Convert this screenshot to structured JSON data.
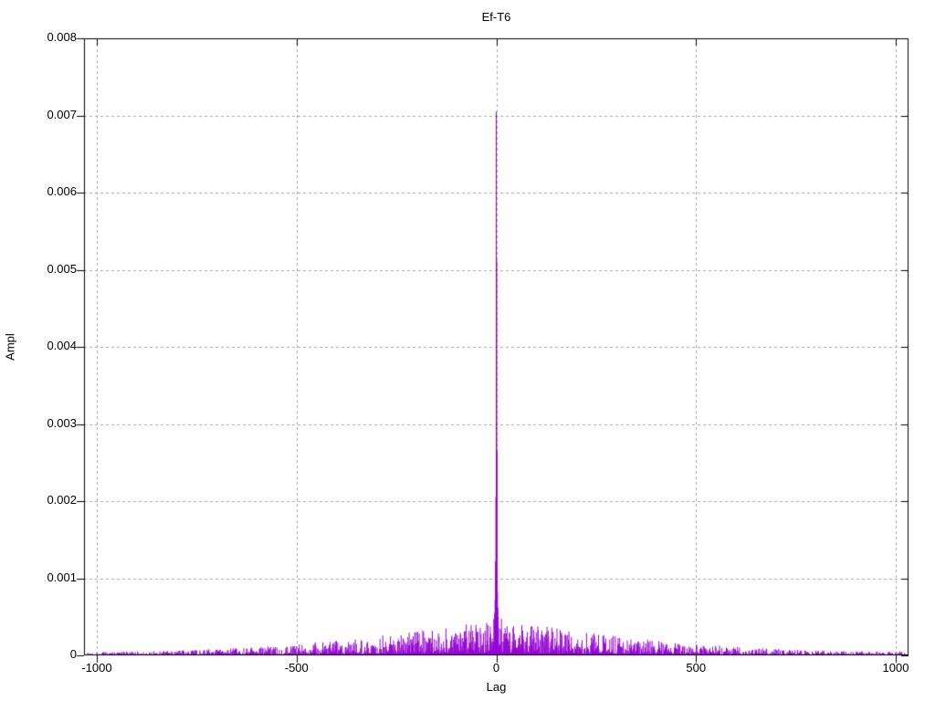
{
  "chart_data": {
    "type": "line",
    "style": "impulses",
    "title": "Ef-T6",
    "xlabel": "Lag",
    "ylabel": "Ampl",
    "xlim": [
      -1032,
      1032
    ],
    "ylim": [
      0,
      0.008
    ],
    "xticks": [
      {
        "v": -1000,
        "label": "-1000"
      },
      {
        "v": -500,
        "label": "-500"
      },
      {
        "v": 0,
        "label": "0"
      },
      {
        "v": 500,
        "label": "500"
      },
      {
        "v": 1000,
        "label": "1000"
      }
    ],
    "yticks": [
      {
        "v": 0,
        "label": "0"
      },
      {
        "v": 0.001,
        "label": "0.001"
      },
      {
        "v": 0.002,
        "label": "0.002"
      },
      {
        "v": 0.003,
        "label": "0.003"
      },
      {
        "v": 0.004,
        "label": "0.004"
      },
      {
        "v": 0.005,
        "label": "0.005"
      },
      {
        "v": 0.006,
        "label": "0.006"
      },
      {
        "v": 0.007,
        "label": "0.007"
      },
      {
        "v": 0.008,
        "label": "0.008"
      }
    ],
    "line_color": "#9400d3",
    "border_color": "#000000",
    "grid": {
      "on": true,
      "color": "#a6a6a6",
      "dash": [
        3,
        3
      ]
    },
    "legend": "none",
    "data_range": [
      -1024,
      1024
    ],
    "peaks": [
      {
        "lag": 0,
        "ampl": 0.00705
      },
      {
        "lag": 1,
        "ampl": 0.00512
      },
      {
        "lag": 2,
        "ampl": 0.00265
      },
      {
        "lag": -1,
        "ampl": 0.00205
      },
      {
        "lag": -2,
        "ampl": 0.00122
      },
      {
        "lag": 3,
        "ampl": 0.00082
      },
      {
        "lag": -3,
        "ampl": 0.00072
      },
      {
        "lag": 4,
        "ampl": 0.00062
      },
      {
        "lag": -4,
        "ampl": 0.00055
      },
      {
        "lag": 5,
        "ampl": 0.0005
      },
      {
        "lag": -5,
        "ampl": 0.00046
      }
    ],
    "noise": {
      "seed": 1337,
      "edge_amp": 5e-05,
      "center_amp": 0.00048,
      "envelope_exp": 2.2,
      "sharpness": 2.2,
      "floor_frac": 0.07,
      "pedestal_width": 16,
      "pedestal_amp": 0.00032
    }
  }
}
